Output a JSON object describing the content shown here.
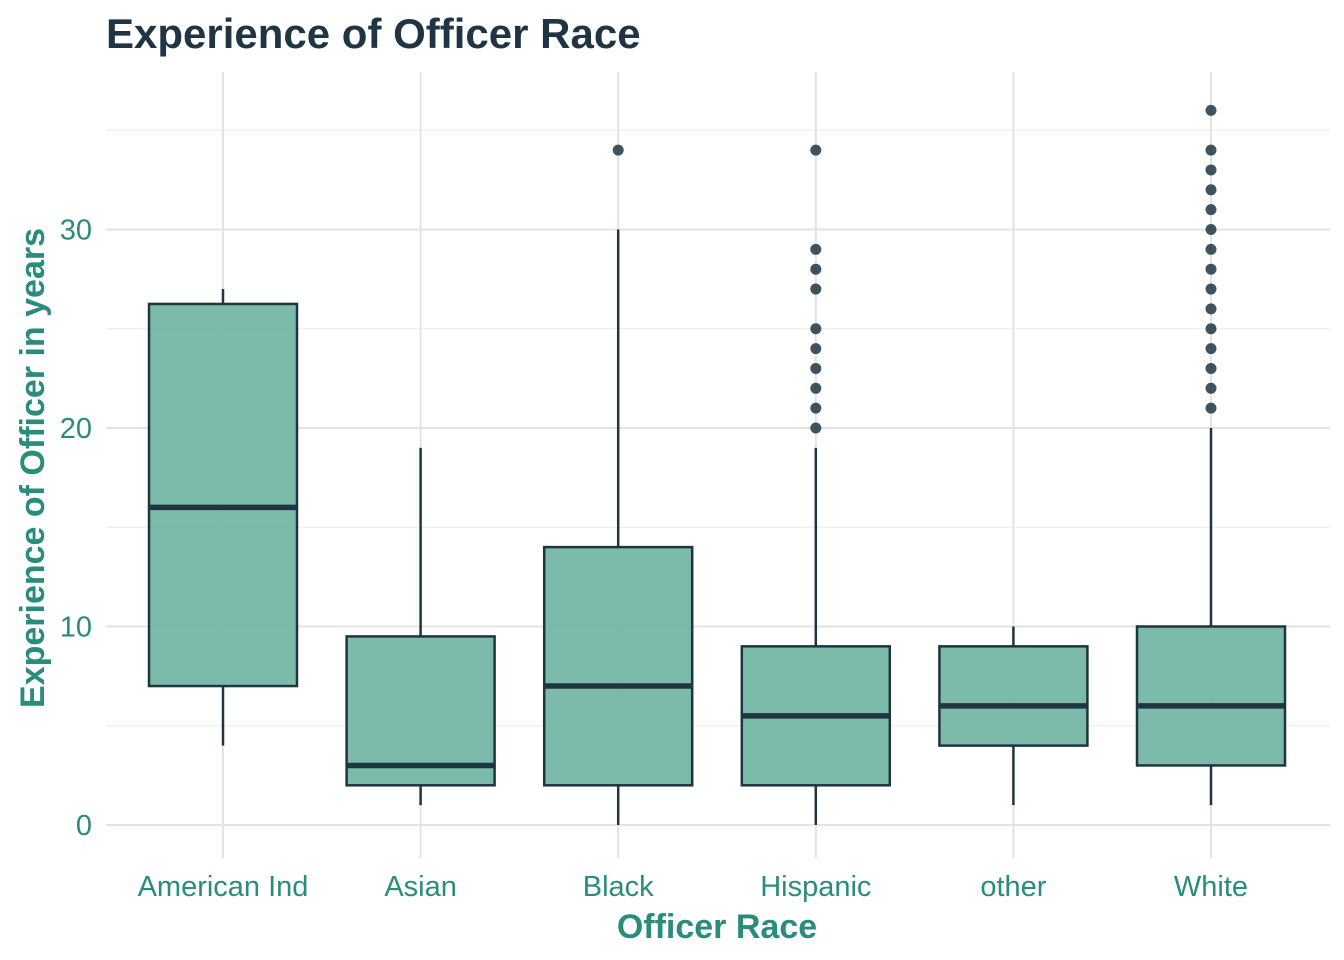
{
  "colors": {
    "title": "#1f3544",
    "axis_text": "#2a8c7c",
    "box_fill": "#6eb3a0",
    "box_stroke": "#1f3544",
    "median": "#1f3544",
    "outlier": "#1f3544",
    "grid_major": "#e3e3e3",
    "grid_minor": "#f0f0f0",
    "background": "#ffffff"
  },
  "chart_data": {
    "type": "boxplot",
    "title": "Experience of Officer Race",
    "xlabel": "Officer Race",
    "ylabel": "Experience of Officer in years",
    "ylim": [
      -2,
      38
    ],
    "yticks": [
      0,
      10,
      20,
      30
    ],
    "y_minor_ticks": [
      5,
      15,
      25,
      35
    ],
    "grid": true,
    "legend": "none",
    "categories": [
      "American Ind",
      "Asian",
      "Black",
      "Hispanic",
      "other",
      "White"
    ],
    "boxes": [
      {
        "category": "American Ind",
        "whisker_low": 4,
        "q1": 7,
        "median": 16,
        "q3": 26.25,
        "whisker_high": 27,
        "outliers": []
      },
      {
        "category": "Asian",
        "whisker_low": 1,
        "q1": 2,
        "median": 3,
        "q3": 9.5,
        "whisker_high": 19,
        "outliers": []
      },
      {
        "category": "Black",
        "whisker_low": 0,
        "q1": 2,
        "median": 7,
        "q3": 14,
        "whisker_high": 30,
        "outliers": [
          34
        ]
      },
      {
        "category": "Hispanic",
        "whisker_low": 0,
        "q1": 2,
        "median": 5.5,
        "q3": 9,
        "whisker_high": 19,
        "outliers": [
          20,
          21,
          22,
          23,
          24,
          25,
          27,
          28,
          29,
          34
        ]
      },
      {
        "category": "other",
        "whisker_low": 1,
        "q1": 4,
        "median": 6,
        "q3": 9,
        "whisker_high": 10,
        "outliers": []
      },
      {
        "category": "White",
        "whisker_low": 1,
        "q1": 3,
        "median": 6,
        "q3": 10,
        "whisker_high": 20,
        "outliers": [
          21,
          22,
          23,
          24,
          25,
          26,
          27,
          28,
          29,
          30,
          31,
          32,
          33,
          34,
          36
        ]
      }
    ]
  }
}
